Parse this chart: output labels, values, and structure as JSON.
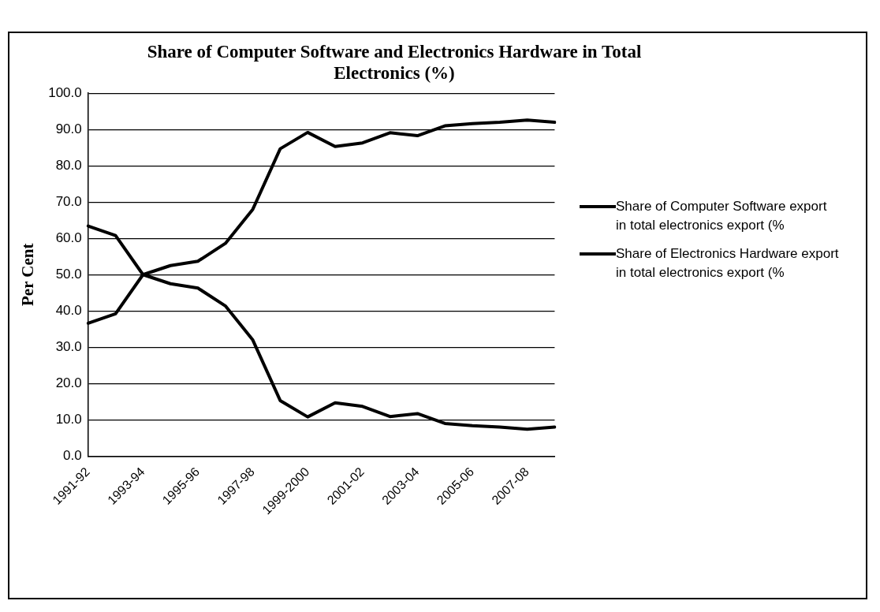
{
  "chart_data": {
    "type": "line",
    "title": "Share of Computer Software and Electronics Hardware in Total Electronics (%)",
    "ylabel": "Per Cent",
    "categories": [
      "1991-92",
      null,
      "1993-94",
      null,
      "1995-96",
      null,
      "1997-98",
      null,
      "1999-2000",
      null,
      "2001-02",
      null,
      "2003-04",
      null,
      "2005-06",
      null,
      "2007-08",
      null
    ],
    "series": [
      {
        "name": "Share of Computer Software export in total electronics export (%",
        "color": "#000000",
        "values": [
          36.6,
          39.2,
          50.0,
          52.5,
          53.7,
          58.6,
          68.0,
          84.7,
          89.2,
          85.3,
          86.3,
          89.1,
          88.3,
          91.0,
          91.6,
          92.0,
          92.6,
          92.0
        ]
      },
      {
        "name": "Share of Electronics Hardware export in total electronics export (%",
        "color": "#000000",
        "values": [
          63.4,
          60.8,
          50.0,
          47.5,
          46.3,
          41.4,
          32.0,
          15.3,
          10.8,
          14.7,
          13.7,
          10.9,
          11.7,
          9.0,
          8.4,
          8.0,
          7.4,
          8.0
        ]
      }
    ],
    "ylim": [
      0,
      100
    ],
    "yticks": [
      {
        "value": 0,
        "label": "0.0"
      },
      {
        "value": 10,
        "label": "10.0"
      },
      {
        "value": 20,
        "label": "20.0"
      },
      {
        "value": 30,
        "label": "30.0"
      },
      {
        "value": 40,
        "label": "40.0"
      },
      {
        "value": 50,
        "label": "50.0"
      },
      {
        "value": 60,
        "label": "60.0"
      },
      {
        "value": 70,
        "label": "70.0"
      },
      {
        "value": 80,
        "label": "80.0"
      },
      {
        "value": 90,
        "label": "90.0"
      },
      {
        "value": 100,
        "label": "100.0"
      }
    ],
    "grid": "y",
    "legend": "right",
    "marker": "none",
    "line_style": "solid"
  }
}
